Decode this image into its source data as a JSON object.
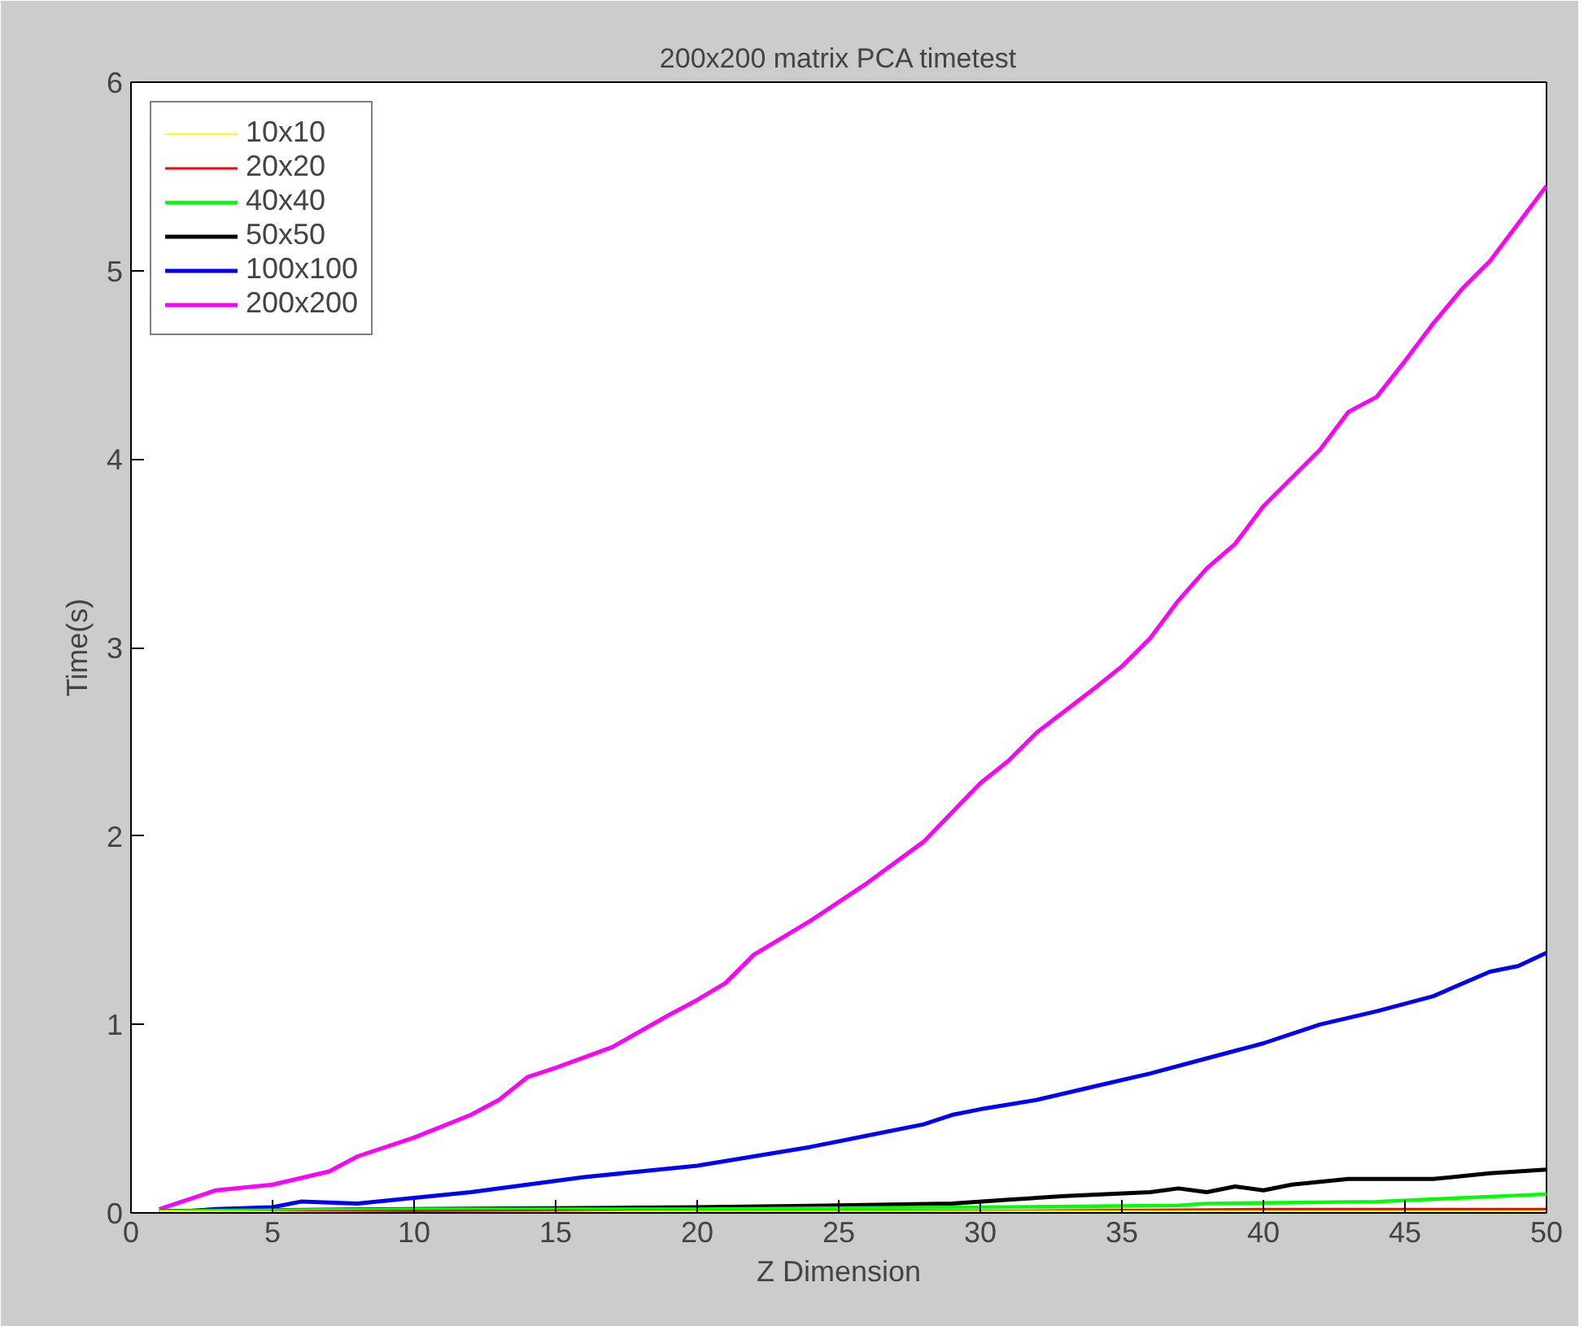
{
  "chart_data": {
    "type": "line",
    "title": "200x200 matrix PCA timetest",
    "xlabel": "Z Dimension",
    "ylabel": "Time(s)",
    "xlim": [
      0,
      50
    ],
    "ylim": [
      0,
      6
    ],
    "xticks": [
      0,
      5,
      10,
      15,
      20,
      25,
      30,
      35,
      40,
      45,
      50
    ],
    "yticks": [
      0,
      1,
      2,
      3,
      4,
      5,
      6
    ],
    "legend": "top left",
    "grid": false,
    "marker": "none",
    "line_style": "solid",
    "series": [
      {
        "name": "10x10",
        "color": "#ffff00",
        "x": [
          1,
          10,
          20,
          30,
          40,
          50
        ],
        "values": [
          0.01,
          0.0,
          0.01,
          0.01,
          0.01,
          0.01
        ]
      },
      {
        "name": "20x20",
        "color": "#ff0000",
        "x": [
          1,
          10,
          20,
          30,
          40,
          50
        ],
        "values": [
          0.0,
          0.01,
          0.01,
          0.01,
          0.02,
          0.02
        ]
      },
      {
        "name": "40x40",
        "color": "#00ff00",
        "x": [
          1,
          10,
          20,
          30,
          37,
          38,
          44,
          47,
          50
        ],
        "values": [
          0.01,
          0.02,
          0.02,
          0.03,
          0.04,
          0.05,
          0.06,
          0.08,
          0.1
        ]
      },
      {
        "name": "50x50",
        "color": "#000000",
        "x": [
          1,
          10,
          20,
          25,
          29,
          31,
          33,
          36,
          37,
          38,
          39,
          40,
          41,
          43,
          46,
          48,
          50
        ],
        "values": [
          0.01,
          0.02,
          0.03,
          0.04,
          0.05,
          0.07,
          0.09,
          0.11,
          0.13,
          0.11,
          0.14,
          0.12,
          0.15,
          0.18,
          0.18,
          0.21,
          0.23
        ]
      },
      {
        "name": "100x100",
        "color": "#0000ff",
        "x": [
          1,
          3,
          5,
          6,
          8,
          10,
          12,
          14,
          16,
          18,
          20,
          22,
          24,
          26,
          28,
          29,
          30,
          32,
          34,
          36,
          38,
          39,
          40,
          42,
          44,
          46,
          48,
          49,
          50
        ],
        "values": [
          0.0,
          0.02,
          0.03,
          0.06,
          0.05,
          0.08,
          0.11,
          0.15,
          0.19,
          0.22,
          0.25,
          0.3,
          0.35,
          0.41,
          0.47,
          0.52,
          0.55,
          0.6,
          0.67,
          0.74,
          0.82,
          0.86,
          0.9,
          1.0,
          1.07,
          1.15,
          1.28,
          1.31,
          1.38
        ]
      },
      {
        "name": "200x200",
        "color": "#ff00ff",
        "x": [
          1,
          3,
          5,
          7,
          8,
          10,
          12,
          13,
          14,
          15,
          17,
          19,
          20,
          21,
          22,
          24,
          26,
          28,
          30,
          31,
          32,
          34,
          35,
          36,
          37,
          38,
          39,
          40,
          42,
          43,
          44,
          45,
          46,
          47,
          48,
          49,
          50
        ],
        "values": [
          0.02,
          0.12,
          0.15,
          0.22,
          0.3,
          0.4,
          0.52,
          0.6,
          0.72,
          0.77,
          0.88,
          1.05,
          1.13,
          1.22,
          1.37,
          1.55,
          1.75,
          1.97,
          2.28,
          2.4,
          2.55,
          2.78,
          2.9,
          3.05,
          3.25,
          3.42,
          3.55,
          3.75,
          4.05,
          4.25,
          4.33,
          4.52,
          4.72,
          4.9,
          5.05,
          5.25,
          5.45
        ]
      }
    ]
  }
}
